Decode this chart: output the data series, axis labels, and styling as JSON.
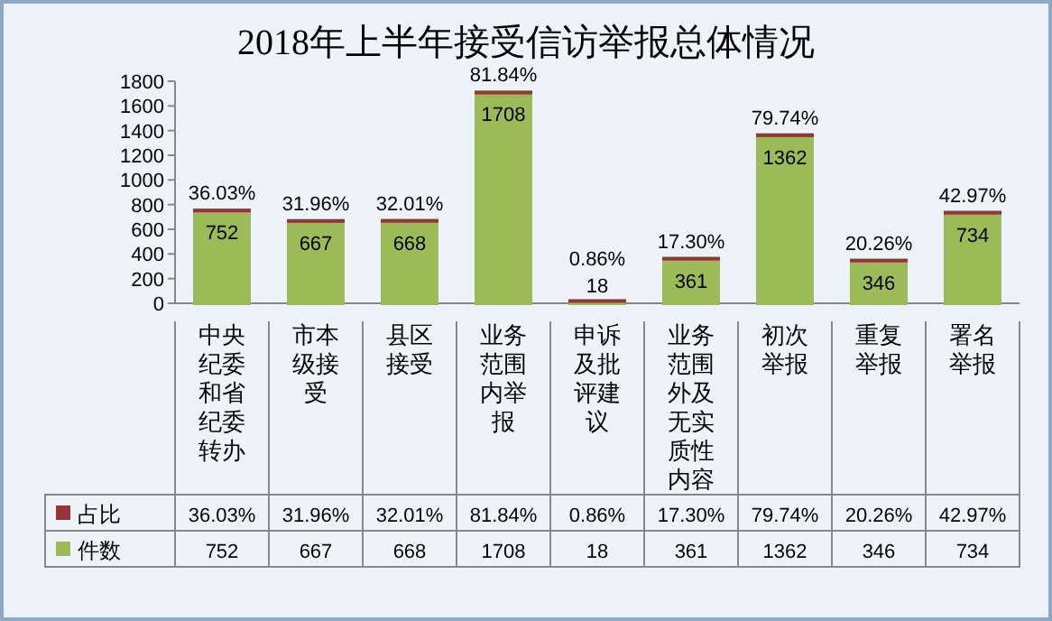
{
  "chart_data": {
    "type": "bar",
    "title": "2018年上半年接受信访举报总体情况",
    "stacked": true,
    "legend": "bottom left",
    "categories": [
      "中央纪委和省纪委转办",
      "市本级接受",
      "县区接受",
      "业务范围内举报",
      "申诉及批评建议",
      "业务范围外及无实质性内容",
      "初次举报",
      "重复举报",
      "署名举报"
    ],
    "series": [
      {
        "name": "件数",
        "color": "#9bbb59",
        "values": [
          752,
          667,
          668,
          1708,
          18,
          361,
          1362,
          346,
          734
        ],
        "value_labels": [
          "752",
          "667",
          "668",
          "1708",
          "18",
          "361",
          "1362",
          "346",
          "734"
        ]
      },
      {
        "name": "占比",
        "color": "#943634",
        "values": [
          0.3603,
          0.3196,
          0.3201,
          0.8184,
          0.0086,
          0.173,
          0.7974,
          0.2026,
          0.4297
        ],
        "value_labels": [
          "36.03%",
          "31.96%",
          "32.01%",
          "81.84%",
          "0.86%",
          "17.30%",
          "79.74%",
          "20.26%",
          "42.97%"
        ]
      }
    ],
    "ylim": [
      0,
      1800
    ],
    "yticks": [
      0,
      200,
      400,
      600,
      800,
      1000,
      1200,
      1400,
      1600,
      1800
    ]
  }
}
